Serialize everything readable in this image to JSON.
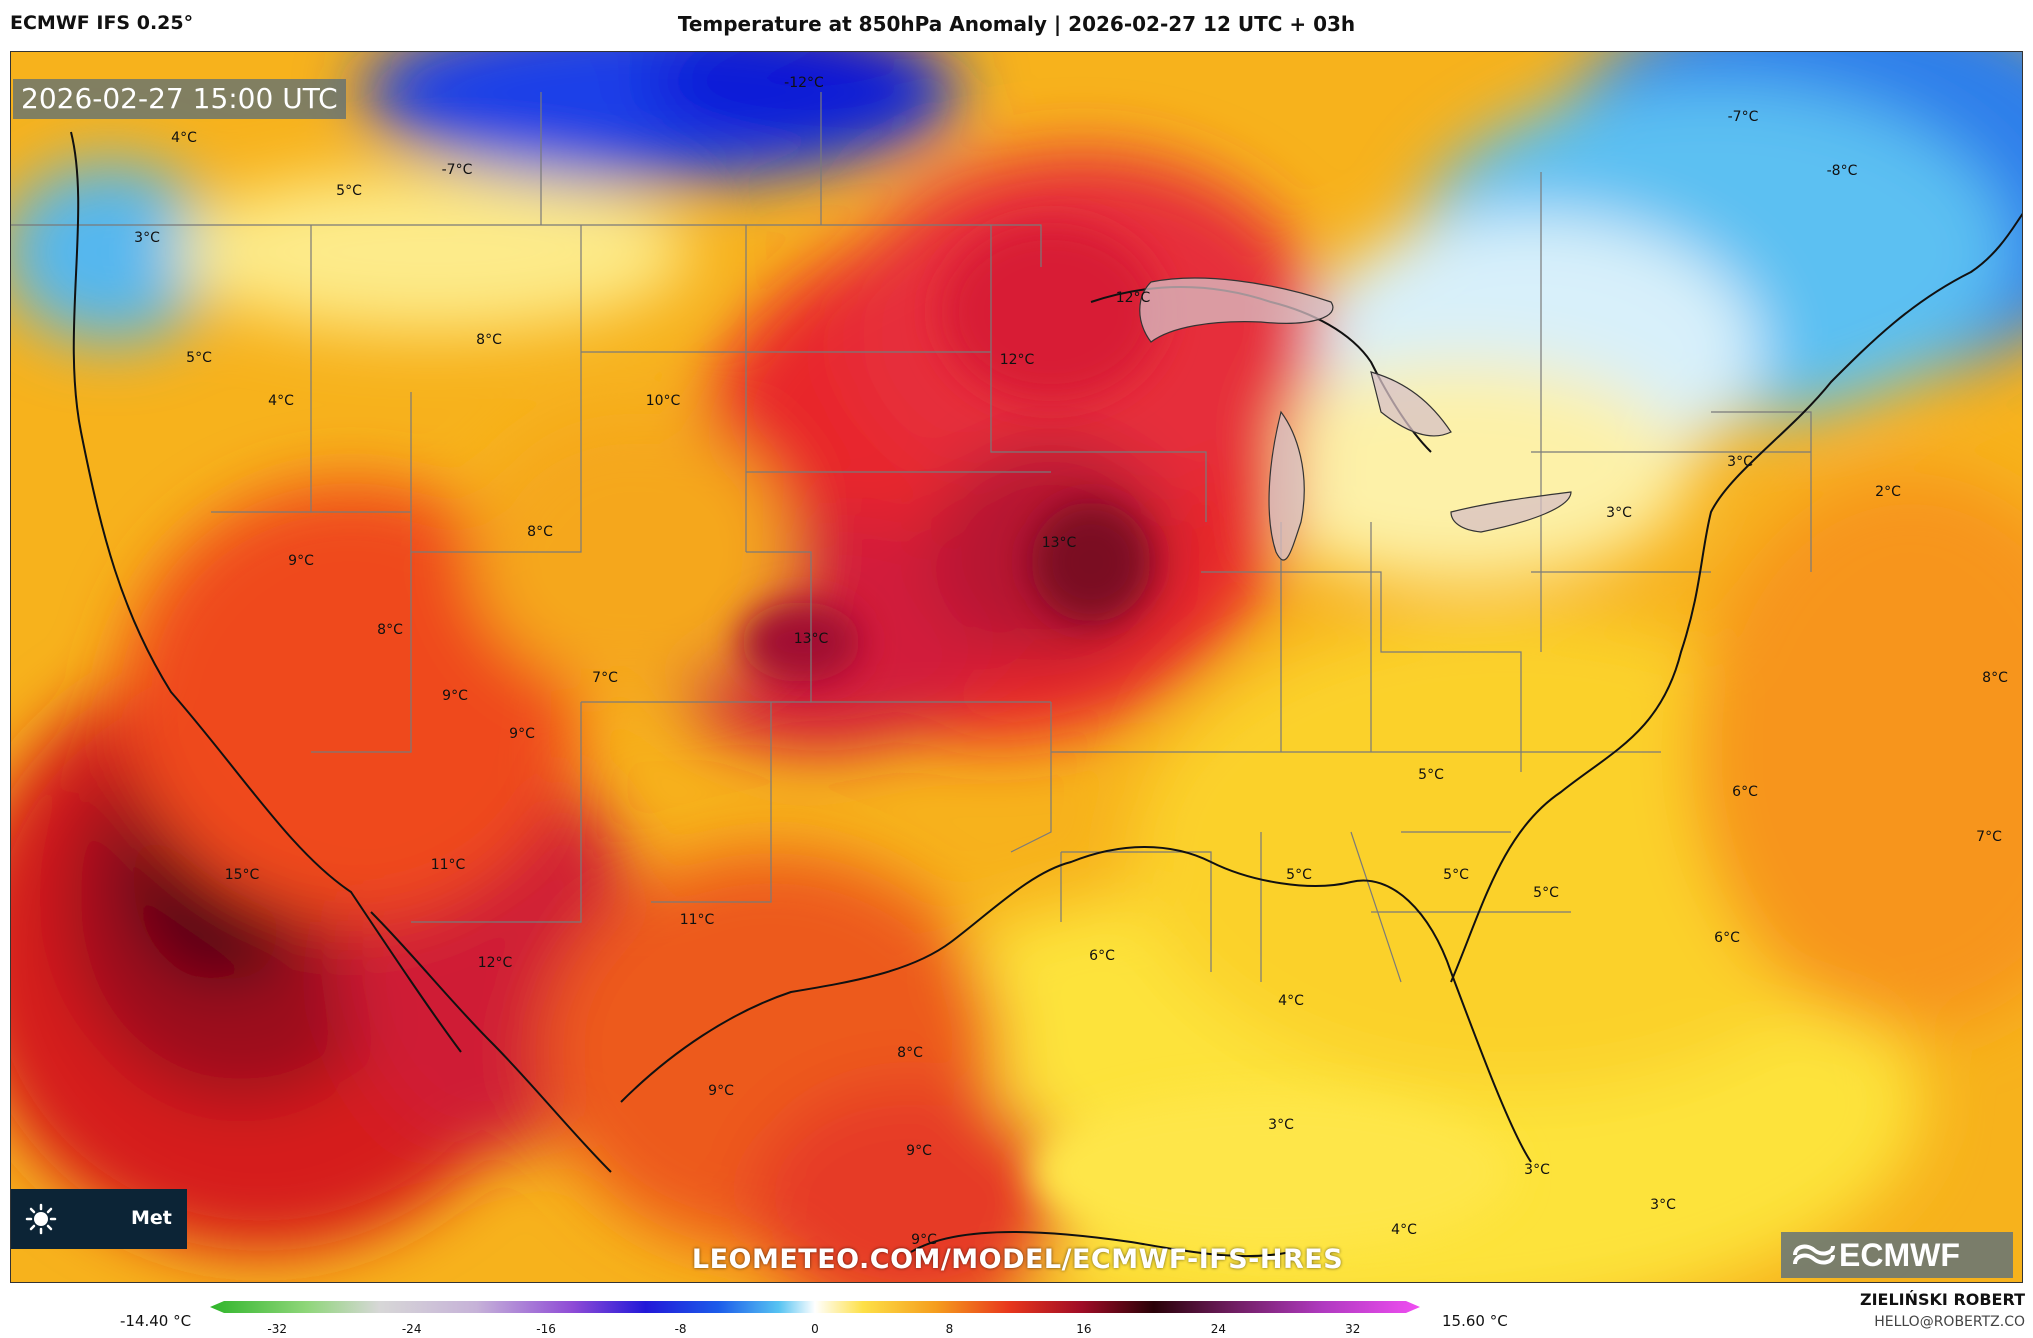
{
  "header": {
    "model": "ECMWF IFS 0.25°",
    "title": "Temperature at 850hPa Anomaly | 2026-02-27 12 UTC + 03h"
  },
  "map": {
    "valid_time": "2026-02-27 15:00 UTC",
    "labels": [
      {
        "text": "-12°C"
      },
      {
        "text": "4°C"
      },
      {
        "text": "-7°C"
      },
      {
        "text": "5°C"
      },
      {
        "text": "3°C"
      },
      {
        "text": "5°C"
      },
      {
        "text": "4°C"
      },
      {
        "text": "8°C"
      },
      {
        "text": "10°C"
      },
      {
        "text": "12°C"
      },
      {
        "text": "12°C"
      },
      {
        "text": "-7°C"
      },
      {
        "text": "-8°C"
      },
      {
        "text": "3°C"
      },
      {
        "text": "2°C"
      },
      {
        "text": "3°C"
      },
      {
        "text": "13°C"
      },
      {
        "text": "8°C"
      },
      {
        "text": "9°C"
      },
      {
        "text": "8°C"
      },
      {
        "text": "13°C"
      },
      {
        "text": "7°C"
      },
      {
        "text": "9°C"
      },
      {
        "text": "9°C"
      },
      {
        "text": "8°C"
      },
      {
        "text": "5°C"
      },
      {
        "text": "6°C"
      },
      {
        "text": "7°C"
      },
      {
        "text": "15°C"
      },
      {
        "text": "11°C"
      },
      {
        "text": "11°C"
      },
      {
        "text": "12°C"
      },
      {
        "text": "5°C"
      },
      {
        "text": "5°C"
      },
      {
        "text": "5°C"
      },
      {
        "text": "6°C"
      },
      {
        "text": "6°C"
      },
      {
        "text": "4°C"
      },
      {
        "text": "8°C"
      },
      {
        "text": "9°C"
      },
      {
        "text": "3°C"
      },
      {
        "text": "9°C"
      },
      {
        "text": "3°C"
      },
      {
        "text": "3°C"
      },
      {
        "text": "4°C"
      },
      {
        "text": "9°C"
      }
    ],
    "logo_text": "Met",
    "watermark": "LEOMETEO.COM/MODEL/ECMWF-IFS-HRES",
    "badge_text": "ECMWF"
  },
  "legend": {
    "min_label": "-14.40 °C",
    "max_label": "15.60 °C",
    "ticks": [
      "-32",
      "-24",
      "-16",
      "-8",
      "0",
      "8",
      "16",
      "24",
      "32"
    ],
    "tick_values": [
      -32,
      -24,
      -16,
      -8,
      0,
      8,
      16,
      24,
      32
    ],
    "range": [
      -36,
      36
    ]
  },
  "credits": {
    "author": "ZIELIŃSKI ROBERT",
    "email": "HELLO@ROBERTZ.CO"
  }
}
